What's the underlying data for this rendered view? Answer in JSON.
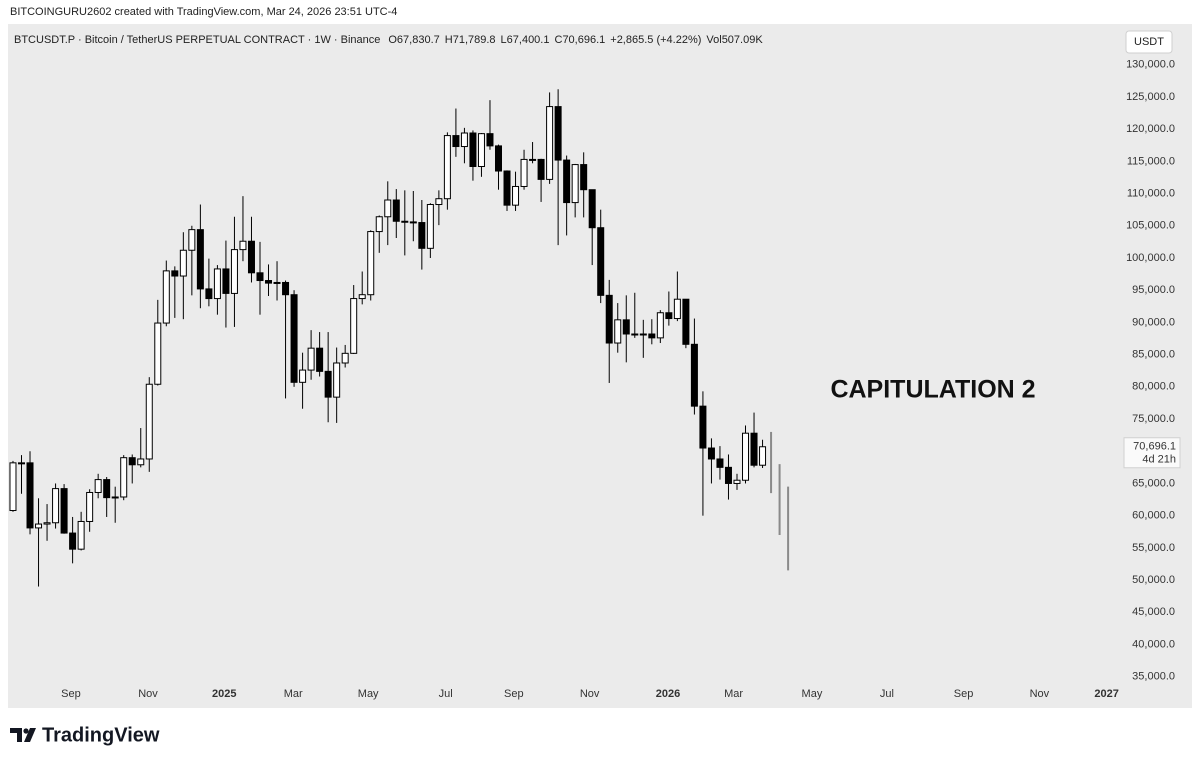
{
  "header": "BITCOINGURU2602 created with TradingView.com, Mar 24, 2026 23:51 UTC-4",
  "brand": "TradingView",
  "chart_data": {
    "type": "candlestick",
    "symbol": "BTCUSDT.P · Bitcoin / TetherUS PERPETUAL CONTRACT · 1W · Binance",
    "legend_values": [
      {
        "key": "O",
        "value": "67,830.7"
      },
      {
        "key": "H",
        "value": "71,789.8"
      },
      {
        "key": "L",
        "value": "67,400.1"
      },
      {
        "key": "C",
        "value": "70,696.1"
      }
    ],
    "change": "+2,865.5 (+4.22%)",
    "volume_key": "Vol",
    "volume": "507.09K",
    "currency": "USDT",
    "annotation": "CAPITULATION 2",
    "last_price_label": "70,696.1",
    "countdown": "4d 21h",
    "up_color": "#ffffff",
    "down_color": "#000000",
    "projection_color": "#8a8a8a",
    "open": [
      60800,
      68200,
      68200,
      58100,
      58700,
      58900,
      64200,
      57300,
      54800,
      59100,
      63600,
      65600,
      62800,
      62900,
      69000,
      67900,
      68800,
      80400,
      89900,
      98000,
      97200,
      101200,
      104400,
      95200,
      93700,
      98300,
      94500,
      101300,
      102600,
      97700,
      96500,
      96100,
      96200,
      94300,
      80700,
      82600,
      86000,
      82400,
      78400,
      83700,
      85200,
      93700,
      94300,
      104100,
      106400,
      109000,
      105700,
      105600,
      105500,
      101500,
      108300,
      109200,
      119000,
      117300,
      119400,
      114200,
      119300,
      117400,
      113500,
      108200,
      111100,
      115300,
      115300,
      112200,
      123500,
      115200,
      108600,
      114500,
      110600,
      104700,
      94200,
      86800,
      90400,
      88200,
      88200,
      88200,
      87600,
      91500,
      90600,
      93600,
      86600,
      77000,
      70500,
      68800,
      67500,
      65000,
      65500,
      72800,
      67830.7
    ],
    "high": [
      68500,
      69400,
      70000,
      62700,
      61800,
      65000,
      64900,
      59800,
      60600,
      64100,
      66500,
      66000,
      64500,
      69400,
      69500,
      73600,
      81500,
      93500,
      99600,
      98700,
      104000,
      105000,
      108300,
      99900,
      98900,
      102700,
      106400,
      109600,
      106400,
      102500,
      99000,
      99500,
      96500,
      95000,
      85300,
      88800,
      88500,
      88500,
      86100,
      86500,
      95800,
      97900,
      104300,
      106600,
      111900,
      110700,
      110500,
      110400,
      109000,
      108500,
      110500,
      119500,
      123200,
      120200,
      119800,
      119400,
      124500,
      117600,
      113600,
      113400,
      116800,
      118000,
      115400,
      125700,
      126200,
      115900,
      114600,
      116400,
      110600,
      107500,
      96600,
      93000,
      94200,
      94600,
      90400,
      90500,
      91900,
      94800,
      97900,
      93600,
      90600,
      79300,
      72000,
      70800,
      69500,
      66500,
      74000,
      76000,
      71789.8
    ],
    "low": [
      60600,
      63400,
      57100,
      49000,
      56100,
      58000,
      57200,
      52600,
      54600,
      57500,
      62700,
      59800,
      58900,
      62400,
      65000,
      67500,
      66800,
      80200,
      89400,
      90700,
      90500,
      94200,
      92200,
      92500,
      91200,
      89200,
      89300,
      99500,
      96200,
      91200,
      94100,
      93400,
      78200,
      80000,
      76600,
      81100,
      81600,
      74500,
      74400,
      83000,
      85100,
      92800,
      93400,
      100800,
      102000,
      103100,
      100400,
      102600,
      98200,
      100000,
      105100,
      107500,
      115700,
      114700,
      112000,
      112600,
      116800,
      110600,
      107300,
      107300,
      110600,
      114700,
      108700,
      111500,
      102000,
      103500,
      106300,
      106300,
      98900,
      93000,
      80600,
      85300,
      83800,
      87600,
      84500,
      86600,
      86800,
      89500,
      90200,
      86000,
      75700,
      60000,
      65000,
      65600,
      62500,
      64000,
      65000,
      67500,
      67400.1
    ],
    "close": [
      68200,
      68200,
      58100,
      58700,
      58900,
      64200,
      57300,
      54800,
      59100,
      63600,
      65600,
      62800,
      62900,
      69000,
      67900,
      68800,
      80400,
      89900,
      98000,
      97200,
      101200,
      104400,
      95200,
      93700,
      98300,
      94500,
      101300,
      102600,
      97700,
      96500,
      96100,
      96200,
      94300,
      80700,
      82600,
      86000,
      82400,
      78400,
      83700,
      85200,
      93700,
      94300,
      104100,
      106400,
      109000,
      105700,
      105600,
      105500,
      101500,
      108300,
      109200,
      119000,
      117300,
      119400,
      114200,
      119300,
      117400,
      113500,
      108200,
      111100,
      115300,
      115300,
      112200,
      123500,
      115200,
      108600,
      114500,
      110600,
      104700,
      94200,
      86800,
      90400,
      88200,
      88200,
      88200,
      87600,
      91500,
      90600,
      93600,
      86600,
      77000,
      70500,
      68800,
      67500,
      65000,
      65500,
      72800,
      67830.7,
      70696.1
    ],
    "projection": [
      {
        "high": 73000,
        "low": 63500
      },
      {
        "high": 68000,
        "low": 57000
      },
      {
        "high": 64500,
        "low": 51500
      }
    ],
    "xlim": [
      -0.35,
      130.2
    ],
    "xticks": [
      {
        "value": 6.8,
        "label": "Sep"
      },
      {
        "value": 15.85,
        "label": "Nov"
      },
      {
        "value": 24.8,
        "label": "2025"
      },
      {
        "value": 32.9,
        "label": "Mar"
      },
      {
        "value": 41.7,
        "label": "May"
      },
      {
        "value": 50.8,
        "label": "Jul"
      },
      {
        "value": 58.8,
        "label": "Sep"
      },
      {
        "value": 67.7,
        "label": "Nov"
      },
      {
        "value": 76.9,
        "label": "2026"
      },
      {
        "value": 84.6,
        "label": "Mar"
      },
      {
        "value": 93.8,
        "label": "May"
      },
      {
        "value": 102.6,
        "label": "Jul"
      },
      {
        "value": 111.6,
        "label": "Sep"
      },
      {
        "value": 120.5,
        "label": "Nov"
      },
      {
        "value": 128.4,
        "label": "2027"
      }
    ],
    "ylim": [
      30300,
      135700
    ],
    "yticks": [
      {
        "value": 35000,
        "label": "35,000.0"
      },
      {
        "value": 40000,
        "label": "40,000.0"
      },
      {
        "value": 45000,
        "label": "45,000.0"
      },
      {
        "value": 50000,
        "label": "50,000.0"
      },
      {
        "value": 55000,
        "label": "55,000.0"
      },
      {
        "value": 60000,
        "label": "60,000.0"
      },
      {
        "value": 65000,
        "label": "65,000.0"
      },
      {
        "value": 70000,
        "label": "70,000.0"
      },
      {
        "value": 75000,
        "label": "75,000.0"
      },
      {
        "value": 80000,
        "label": "80,000.0"
      },
      {
        "value": 85000,
        "label": "85,000.0"
      },
      {
        "value": 90000,
        "label": "90,000.0"
      },
      {
        "value": 95000,
        "label": "95,000.0"
      },
      {
        "value": 100000,
        "label": "100,000.0"
      },
      {
        "value": 105000,
        "label": "105,000.0"
      },
      {
        "value": 110000,
        "label": "110,000.0"
      },
      {
        "value": 115000,
        "label": "115,000.0"
      },
      {
        "value": 120000,
        "label": "120,000.0"
      },
      {
        "value": 125000,
        "label": "125,000.0"
      },
      {
        "value": 130000,
        "label": "130,000.0"
      }
    ],
    "grid": false
  }
}
